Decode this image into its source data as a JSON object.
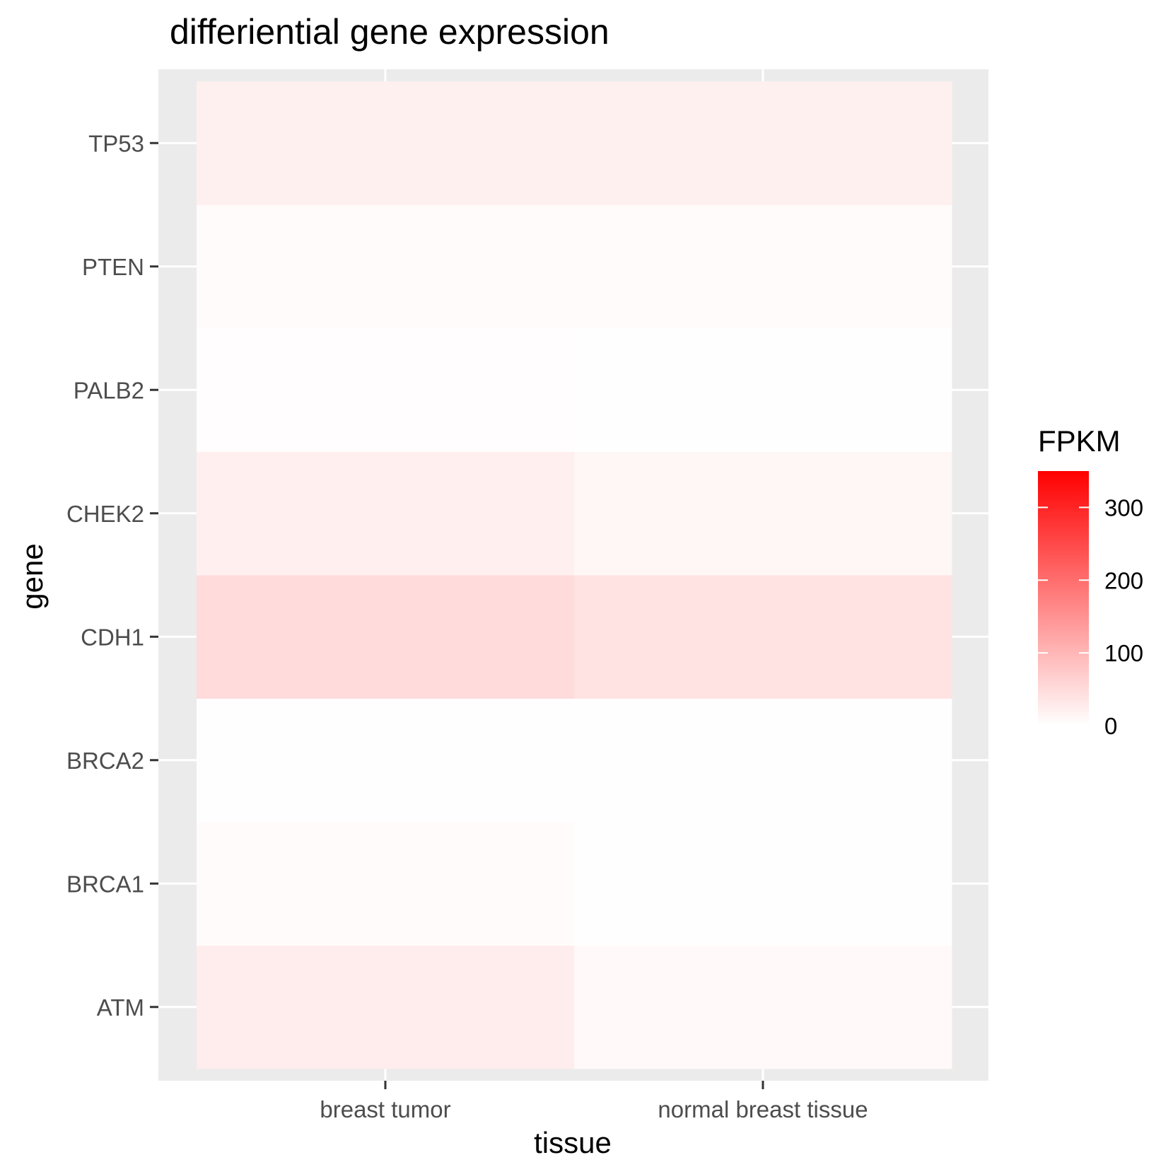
{
  "chart_data": {
    "type": "heatmap",
    "title": "differiential gene expression",
    "xlabel": "tissue",
    "ylabel": "gene",
    "x_categories": [
      "breast tumor",
      "normal breast tissue"
    ],
    "y_categories": [
      "ATM",
      "BRCA1",
      "BRCA2",
      "CDH1",
      "CHEK2",
      "PALB2",
      "PTEN",
      "TP53"
    ],
    "values": [
      [
        25,
        8
      ],
      [
        6,
        1
      ],
      [
        1,
        1
      ],
      [
        50,
        38
      ],
      [
        22,
        12
      ],
      [
        3,
        2
      ],
      [
        5,
        5
      ],
      [
        20,
        20
      ]
    ],
    "legend": {
      "title": "FPKM",
      "ticks": [
        0,
        100,
        200,
        300
      ],
      "range": [
        0,
        350
      ],
      "low_color": "#ffffff",
      "high_color": "#ff0000",
      "position": "right"
    },
    "grid": true,
    "panel_background": "#ebebeb",
    "gridline_color": "#ffffff"
  }
}
